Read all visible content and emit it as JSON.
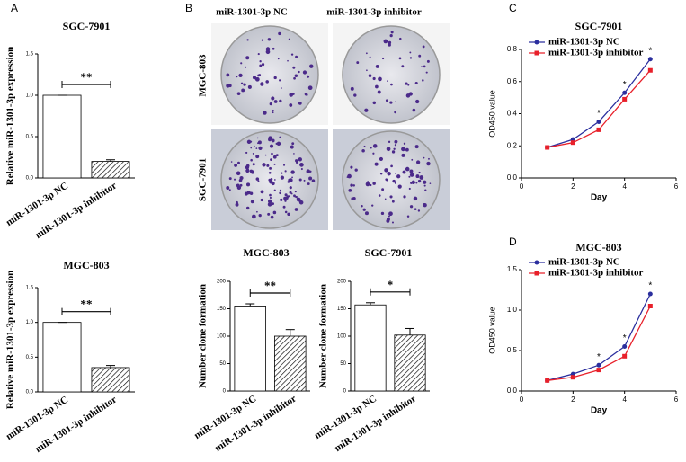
{
  "panel_labels": [
    "A",
    "B",
    "C",
    "D"
  ],
  "panel_b_images": {
    "columns": [
      "miR-1301-3p NC",
      "miR-1301-3p inhibitor"
    ],
    "rows": [
      "MGC-803",
      "SGC-7901"
    ]
  },
  "chart_data": [
    {
      "type": "bar",
      "title": "SGC-7901",
      "ylabel": "Relative miR-1301-3p expression",
      "categories": [
        "miR-1301-3p NC",
        "miR-1301-3p inhibitor"
      ],
      "values": [
        1.0,
        0.2
      ],
      "errors": [
        0,
        0.02
      ],
      "ylim": [
        0,
        1.5
      ],
      "yticks": [
        {
          "value": 0,
          "label": "0.0"
        },
        0.5,
        {
          "value": 1,
          "label": "1.0"
        },
        1.5
      ],
      "significance": "**"
    },
    {
      "type": "bar",
      "title": "MGC-803",
      "ylabel": "Relative miR-1301-3p expression",
      "categories": [
        "miR-1301-3p NC",
        "miR-1301-3p inhibitor"
      ],
      "values": [
        1.0,
        0.35
      ],
      "errors": [
        0,
        0.03
      ],
      "ylim": [
        0,
        1.5
      ],
      "yticks": [
        {
          "value": 0,
          "label": "0.0"
        },
        0.5,
        {
          "value": 1,
          "label": "1.0"
        },
        1.5
      ],
      "significance": "**"
    },
    {
      "type": "bar",
      "title": "MGC-803",
      "ylabel": "Number clone formation",
      "categories": [
        "miR-1301-3p NC",
        "miR-1301-3p inhibitor"
      ],
      "values": [
        155,
        100
      ],
      "errors": [
        4,
        12
      ],
      "ylim": [
        0,
        200
      ],
      "yticks": [
        0,
        50,
        100,
        150,
        200
      ],
      "significance": "**"
    },
    {
      "type": "bar",
      "title": "SGC-7901",
      "ylabel": "Number clone formation",
      "categories": [
        "miR-1301-3p NC",
        "miR-1301-3p inhibitor"
      ],
      "values": [
        157,
        102
      ],
      "errors": [
        4,
        12
      ],
      "ylim": [
        0,
        200
      ],
      "yticks": [
        0,
        50,
        100,
        150,
        200
      ],
      "significance": "*"
    },
    {
      "type": "line",
      "title": "SGC-7901",
      "xlabel": "Day",
      "ylabel": "OD450 value",
      "x": [
        1,
        2,
        3,
        4,
        5
      ],
      "series": [
        {
          "name": "miR-1301-3p NC",
          "color": "#2b2f9e",
          "values": [
            0.19,
            0.24,
            0.35,
            0.53,
            0.74
          ]
        },
        {
          "name": "miR-1301-3p inhibitor",
          "color": "#e8202a",
          "values": [
            0.19,
            0.22,
            0.3,
            0.49,
            0.67
          ]
        }
      ],
      "xlim": [
        0,
        6
      ],
      "xticks": [
        0,
        2,
        4,
        6
      ],
      "ylim": [
        0,
        0.8
      ],
      "yticks": [
        {
          "value": 0,
          "label": "0.0"
        },
        0.2,
        0.4,
        0.6,
        0.8
      ],
      "legend": "upper left",
      "annotations": [
        {
          "x": 3,
          "text": "*"
        },
        {
          "x": 4,
          "text": "*"
        },
        {
          "x": 5,
          "text": "*"
        }
      ]
    },
    {
      "type": "line",
      "title": "MGC-803",
      "xlabel": "Day",
      "ylabel": "OD450 value",
      "x": [
        1,
        2,
        3,
        4,
        5
      ],
      "series": [
        {
          "name": "miR-1301-3p NC",
          "color": "#2b2f9e",
          "values": [
            0.13,
            0.21,
            0.32,
            0.55,
            1.2
          ]
        },
        {
          "name": "miR-1301-3p inhibitor",
          "color": "#e8202a",
          "values": [
            0.13,
            0.17,
            0.26,
            0.43,
            1.05
          ]
        }
      ],
      "xlim": [
        0,
        6
      ],
      "xticks": [
        0,
        2,
        4,
        6
      ],
      "ylim": [
        0,
        1.5
      ],
      "yticks": [
        {
          "value": 0,
          "label": "0.0"
        },
        0.5,
        {
          "value": 1,
          "label": "1.0"
        },
        1.5
      ],
      "legend": "upper left",
      "annotations": [
        {
          "x": 3,
          "text": "*"
        },
        {
          "x": 4,
          "text": "*"
        },
        {
          "x": 5,
          "text": "*"
        }
      ]
    }
  ]
}
